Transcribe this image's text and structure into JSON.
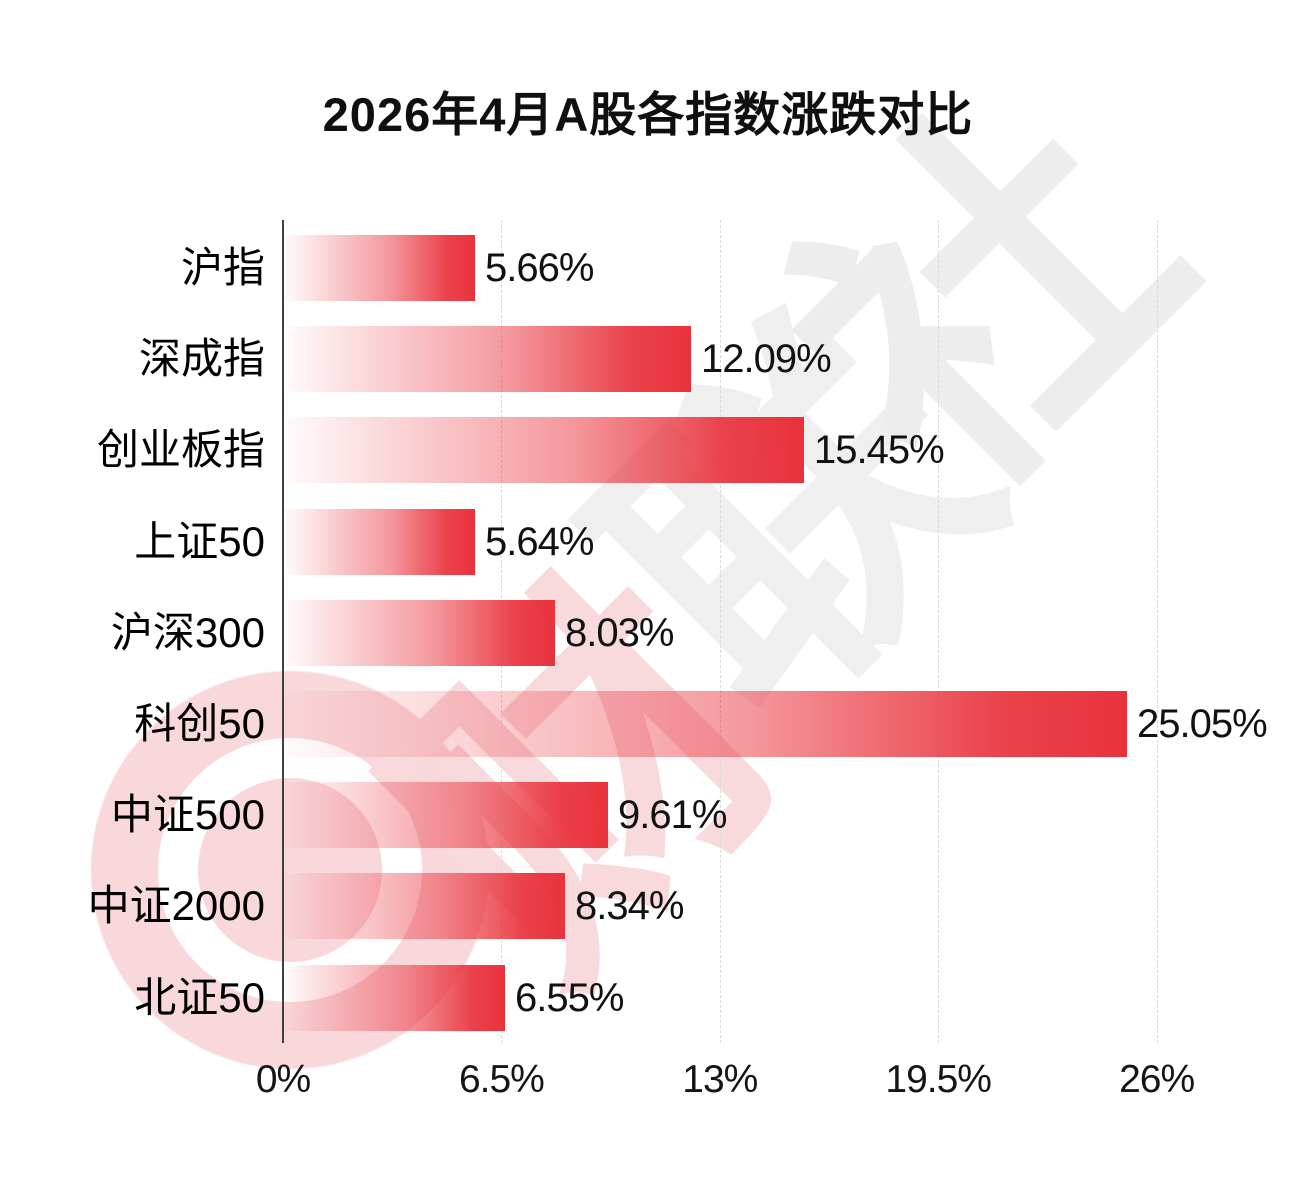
{
  "title": "2026年4月A股各指数涨跌对比",
  "watermark": {
    "logo_name": "cailianshe-logo",
    "chars": [
      "财",
      "联",
      "社"
    ]
  },
  "chart_data": {
    "type": "bar",
    "orientation": "horizontal",
    "title": "2026年4月A股各指数涨跌对比",
    "categories": [
      "沪指",
      "深成指",
      "创业板指",
      "上证50",
      "沪深300",
      "科创50",
      "中证500",
      "中证2000",
      "北证50"
    ],
    "values": [
      5.66,
      12.09,
      15.45,
      5.64,
      8.03,
      25.05,
      9.61,
      8.34,
      6.55
    ],
    "value_labels": [
      "5.66%",
      "12.09%",
      "15.45%",
      "5.64%",
      "8.03%",
      "25.05%",
      "9.61%",
      "8.34%",
      "6.55%"
    ],
    "xlabel": "",
    "ylabel": "",
    "xlim": [
      0,
      26
    ],
    "x_ticks": [
      {
        "label": "0%",
        "value": 0
      },
      {
        "label": "6.5%",
        "value": 6.5
      },
      {
        "label": "13%",
        "value": 13
      },
      {
        "label": "19.5%",
        "value": 19.5
      },
      {
        "label": "26%",
        "value": 26
      }
    ],
    "grid": "vertical-dashed",
    "legend": "none",
    "bar_gradient": [
      "#ffffff",
      "#e9323c"
    ]
  },
  "colors": {
    "background": "#ffffff",
    "bar_red": "#e9323c",
    "axis_line": "#404040",
    "gridline": "#d9d9d9",
    "text": "#0f0f0f",
    "watermark_pink": "#f8d8db",
    "watermark_gray": "#efeff0"
  }
}
